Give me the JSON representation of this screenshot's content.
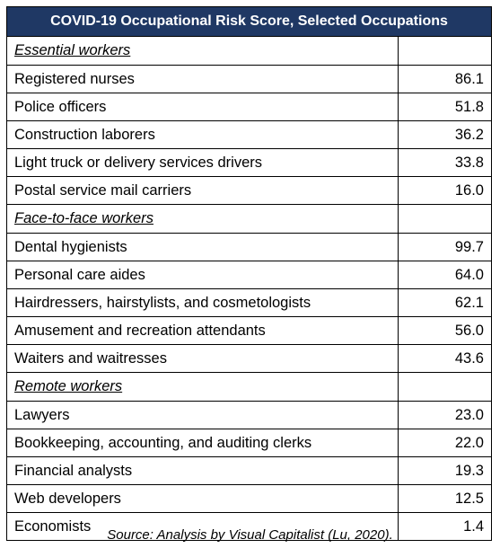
{
  "title": "COVID-19 Occupational Risk Score, Selected Occupations",
  "sections": [
    {
      "heading": "Essential workers",
      "rows": [
        {
          "occupation": "Registered nurses",
          "score": "86.1"
        },
        {
          "occupation": "Police officers",
          "score": "51.8"
        },
        {
          "occupation": "Construction laborers",
          "score": "36.2"
        },
        {
          "occupation": "Light truck or delivery services drivers",
          "score": "33.8"
        },
        {
          "occupation": "Postal service mail carriers",
          "score": "16.0"
        }
      ]
    },
    {
      "heading": "Face-to-face workers",
      "rows": [
        {
          "occupation": "Dental hygienists",
          "score": "99.7"
        },
        {
          "occupation": "Personal care aides",
          "score": "64.0"
        },
        {
          "occupation": "Hairdressers, hairstylists, and cosmetologists",
          "score": "62.1"
        },
        {
          "occupation": "Amusement and recreation attendants",
          "score": "56.0"
        },
        {
          "occupation": "Waiters and waitresses",
          "score": "43.6"
        }
      ]
    },
    {
      "heading": "Remote workers",
      "rows": [
        {
          "occupation": "Lawyers",
          "score": "23.0"
        },
        {
          "occupation": "Bookkeeping, accounting, and auditing clerks",
          "score": "22.0"
        },
        {
          "occupation": "Financial analysts",
          "score": "19.3"
        },
        {
          "occupation": "Web developers",
          "score": "12.5"
        },
        {
          "occupation": "Economists",
          "score": "1.4"
        }
      ]
    }
  ],
  "source": "Source: Analysis by Visual Capitalist (Lu, 2020).",
  "colors": {
    "title_background": "#1f3864",
    "title_text": "#ffffff"
  }
}
